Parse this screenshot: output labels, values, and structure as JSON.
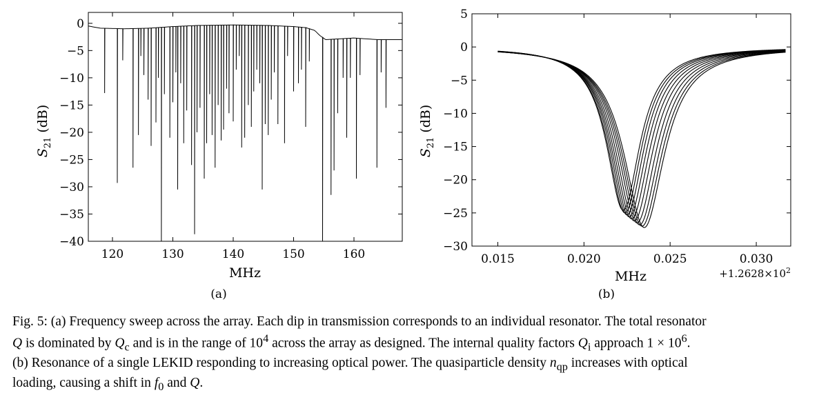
{
  "figure": {
    "panels": [
      {
        "label": "(a)",
        "xlabel": "MHz",
        "ylabel_main": "S",
        "ylabel_sub": "21",
        "ylabel_unit": " (dB)"
      },
      {
        "label": "(b)",
        "xlabel": "MHz",
        "ylabel_main": "S",
        "ylabel_sub": "21",
        "ylabel_unit": " (dB)",
        "x_offset_text": "+1.2628×10",
        "x_offset_exp": "2"
      }
    ],
    "caption": {
      "l1": "Fig. 5: (a) Frequency sweep across the array. Each dip in transmission corresponds to an individual resonator. The total resonator",
      "l2_a": "Q",
      "l2_b": " is dominated by ",
      "l2_c": "Q",
      "l2_c_sub": "c",
      "l2_d": " and is in the range of 10",
      "l2_d_sup": "4",
      "l2_e": " across the array as designed. The internal quality factors ",
      "l2_f": "Q",
      "l2_f_sub": "i",
      "l2_g": " approach 1 × 10",
      "l2_g_sup": "6",
      "l2_h": ".",
      "l3_a": "(b) Resonance of a single LEKID responding to increasing optical power. The quasiparticle density ",
      "l3_b": "n",
      "l3_b_sub": "qp",
      "l3_c": " increases with optical",
      "l4_a": "loading, causing a shift in ",
      "l4_b": "f",
      "l4_b_sub": "0",
      "l4_c": " and ",
      "l4_d": "Q",
      "l4_e": "."
    }
  },
  "chart_data": [
    {
      "type": "line",
      "panel": "(a)",
      "xlabel": "MHz",
      "ylabel": "S21 (dB)",
      "xlim": [
        116,
        168
      ],
      "ylim": [
        -40,
        2
      ],
      "xticks": [
        120,
        130,
        140,
        150,
        160
      ],
      "yticks": [
        0,
        -5,
        -10,
        -15,
        -20,
        -25,
        -30,
        -35,
        -40
      ],
      "grid": false,
      "baseline_points": [
        {
          "x": 116,
          "y": -0.5
        },
        {
          "x": 118,
          "y": -0.9
        },
        {
          "x": 122,
          "y": -1.0
        },
        {
          "x": 126,
          "y": -0.9
        },
        {
          "x": 130,
          "y": -0.6
        },
        {
          "x": 134,
          "y": -0.4
        },
        {
          "x": 140,
          "y": -0.3
        },
        {
          "x": 146,
          "y": -0.4
        },
        {
          "x": 150,
          "y": -0.6
        },
        {
          "x": 152,
          "y": -0.8
        },
        {
          "x": 153.5,
          "y": -1.3
        },
        {
          "x": 154.3,
          "y": -2.2
        },
        {
          "x": 155.3,
          "y": -3.0
        },
        {
          "x": 160,
          "y": -2.7
        },
        {
          "x": 164,
          "y": -3.0
        },
        {
          "x": 168,
          "y": -3.0
        }
      ],
      "dips": [
        {
          "x": 118.7,
          "y": -12.8
        },
        {
          "x": 120.8,
          "y": -29.3
        },
        {
          "x": 121.7,
          "y": -6.8
        },
        {
          "x": 123.4,
          "y": -26.5
        },
        {
          "x": 124.3,
          "y": -20.5
        },
        {
          "x": 124.7,
          "y": -6.0
        },
        {
          "x": 125.2,
          "y": -9.5
        },
        {
          "x": 125.9,
          "y": -14.0
        },
        {
          "x": 126.4,
          "y": -22.5
        },
        {
          "x": 127.2,
          "y": -18.2
        },
        {
          "x": 127.6,
          "y": -10.0
        },
        {
          "x": 128.1,
          "y": -40.0
        },
        {
          "x": 128.6,
          "y": -13.0
        },
        {
          "x": 129.5,
          "y": -21.0
        },
        {
          "x": 130.0,
          "y": -14.5
        },
        {
          "x": 130.5,
          "y": -9.0
        },
        {
          "x": 130.8,
          "y": -30.5
        },
        {
          "x": 131.3,
          "y": -11.0
        },
        {
          "x": 131.8,
          "y": -22.0
        },
        {
          "x": 132.3,
          "y": -16.0
        },
        {
          "x": 133.1,
          "y": -26.0
        },
        {
          "x": 133.6,
          "y": -38.7
        },
        {
          "x": 134.0,
          "y": -20.0
        },
        {
          "x": 134.5,
          "y": -15.5
        },
        {
          "x": 135.2,
          "y": -28.5
        },
        {
          "x": 135.6,
          "y": -22.0
        },
        {
          "x": 136.1,
          "y": -13.0
        },
        {
          "x": 136.5,
          "y": -20.5
        },
        {
          "x": 137.0,
          "y": -26.5
        },
        {
          "x": 137.5,
          "y": -15.0
        },
        {
          "x": 138.0,
          "y": -21.5
        },
        {
          "x": 138.4,
          "y": -19.5
        },
        {
          "x": 138.9,
          "y": -12.0
        },
        {
          "x": 139.3,
          "y": -16.5
        },
        {
          "x": 140.0,
          "y": -18.0
        },
        {
          "x": 140.5,
          "y": -8.5
        },
        {
          "x": 141.0,
          "y": -6.0
        },
        {
          "x": 141.4,
          "y": -22.8
        },
        {
          "x": 141.9,
          "y": -21.0
        },
        {
          "x": 142.5,
          "y": -15.0
        },
        {
          "x": 143.0,
          "y": -19.0
        },
        {
          "x": 143.4,
          "y": -12.5
        },
        {
          "x": 143.9,
          "y": -8.5
        },
        {
          "x": 144.4,
          "y": -11.0
        },
        {
          "x": 144.8,
          "y": -30.5
        },
        {
          "x": 145.3,
          "y": -18.5
        },
        {
          "x": 145.8,
          "y": -20.5
        },
        {
          "x": 146.3,
          "y": -14.0
        },
        {
          "x": 146.8,
          "y": -9.0
        },
        {
          "x": 147.4,
          "y": -18.5
        },
        {
          "x": 148.5,
          "y": -22.0
        },
        {
          "x": 149.0,
          "y": -6.0
        },
        {
          "x": 150.0,
          "y": -12.5
        },
        {
          "x": 150.8,
          "y": -11.0
        },
        {
          "x": 151.3,
          "y": -8.5
        },
        {
          "x": 152.0,
          "y": -19.0
        },
        {
          "x": 152.6,
          "y": -7.0
        },
        {
          "x": 154.8,
          "y": -40.0
        },
        {
          "x": 156.2,
          "y": -31.5
        },
        {
          "x": 156.7,
          "y": -27.0
        },
        {
          "x": 157.3,
          "y": -16.5
        },
        {
          "x": 158.2,
          "y": -10.0
        },
        {
          "x": 158.8,
          "y": -21.0
        },
        {
          "x": 159.4,
          "y": -10.0
        },
        {
          "x": 160.4,
          "y": -28.5
        },
        {
          "x": 161.0,
          "y": -9.5
        },
        {
          "x": 163.8,
          "y": -26.5
        },
        {
          "x": 164.5,
          "y": -9.0
        },
        {
          "x": 165.3,
          "y": -15.5
        }
      ]
    },
    {
      "type": "line",
      "panel": "(b)",
      "xlabel": "MHz",
      "ylabel": "S21 (dB)",
      "x_offset": "+1.2628×10^2",
      "xlim": [
        0.0135,
        0.032
      ],
      "ylim": [
        -30,
        5
      ],
      "xticks": [
        0.015,
        0.02,
        0.025,
        0.03
      ],
      "xtick_labels": [
        "0.015",
        "0.020",
        "0.025",
        "0.030"
      ],
      "yticks": [
        5,
        0,
        -5,
        -10,
        -15,
        -20,
        -25,
        -30
      ],
      "grid": false,
      "x_range_plotted": [
        0.015,
        0.0317
      ],
      "series": [
        {
          "f0": 0.02228,
          "depth": -24.6,
          "hw": 0.00118
        },
        {
          "f0": 0.02238,
          "depth": -25.0,
          "hw": 0.0012
        },
        {
          "f0": 0.0225,
          "depth": -25.3,
          "hw": 0.00122
        },
        {
          "f0": 0.02263,
          "depth": -25.6,
          "hw": 0.00125
        },
        {
          "f0": 0.02277,
          "depth": -25.9,
          "hw": 0.00128
        },
        {
          "f0": 0.02292,
          "depth": -26.2,
          "hw": 0.00131
        },
        {
          "f0": 0.02308,
          "depth": -26.5,
          "hw": 0.00134
        },
        {
          "f0": 0.02323,
          "depth": -26.8,
          "hw": 0.00137
        },
        {
          "f0": 0.02337,
          "depth": -27.0,
          "hw": 0.0014
        },
        {
          "f0": 0.0235,
          "depth": -27.2,
          "hw": 0.00142
        }
      ]
    }
  ]
}
